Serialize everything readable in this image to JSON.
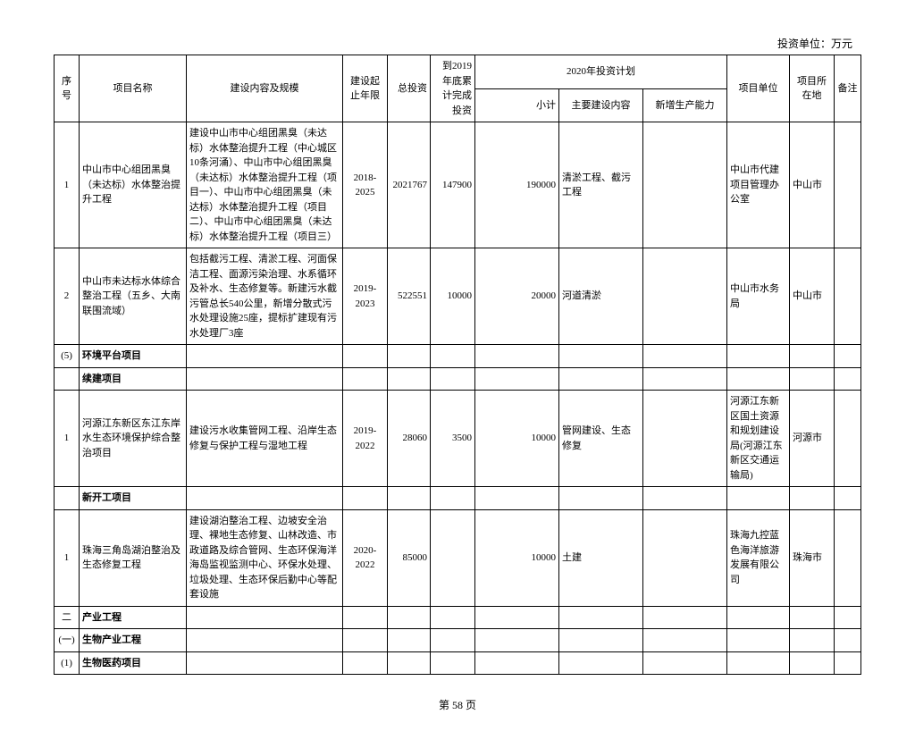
{
  "unit_label": "投资单位：万元",
  "headers": {
    "seq": "序号",
    "name": "项目名称",
    "content": "建设内容及规模",
    "period": "建设起止年限",
    "total": "总投资",
    "completed": "到2019年底累计完成投资",
    "plan2020": "2020年投资计划",
    "subtotal": "小计",
    "main_content": "主要建设内容",
    "new_capacity": "新增生产能力",
    "unit": "项目单位",
    "location": "项目所在地",
    "remark": "备注"
  },
  "rows": [
    {
      "seq": "1",
      "name": "中山市中心组团黑臭（未达标）水体整治提升工程",
      "content": "建设中山市中心组团黑臭（未达标）水体整治提升工程（中心城区10条河涌）、中山市中心组团黑臭（未达标）水体整治提升工程（项目一）、中山市中心组团黑臭（未达标）水体整治提升工程（项目二）、中山市中心组团黑臭（未达标）水体整治提升工程（项目三）",
      "period": "2018-2025",
      "total": "2021767",
      "completed": "147900",
      "subtotal": "190000",
      "main_content": "清淤工程、截污工程",
      "new_capacity": "",
      "unit": "中山市代建项目管理办公室",
      "location": "中山市",
      "remark": ""
    },
    {
      "seq": "2",
      "name": "中山市未达标水体综合整治工程（五乡、大南联围流域）",
      "content": "包括截污工程、清淤工程、河面保洁工程、面源污染治理、水系循环及补水、生态修复等。新建污水截污管总长540公里，新增分散式污水处理设施25座，提标扩建现有污水处理厂3座",
      "period": "2019-2023",
      "total": "522551",
      "completed": "10000",
      "subtotal": "20000",
      "main_content": "河道清淤",
      "new_capacity": "",
      "unit": "中山市水务局",
      "location": "中山市",
      "remark": ""
    },
    {
      "section": true,
      "seq": "(5)",
      "name": "环境平台项目",
      "bold": true
    },
    {
      "section": true,
      "seq": "",
      "name": "续建项目",
      "bold": true
    },
    {
      "seq": "1",
      "name": "河源江东新区东江东岸水生态环境保护综合整治项目",
      "content": "建设污水收集管网工程、沿岸生态修复与保护工程与湿地工程",
      "period": "2019-2022",
      "total": "28060",
      "completed": "3500",
      "subtotal": "10000",
      "main_content": "管网建设、生态修复",
      "new_capacity": "",
      "unit": "河源江东新区国土资源和规划建设局(河源江东新区交通运输局)",
      "location": "河源市",
      "remark": ""
    },
    {
      "section": true,
      "seq": "",
      "name": "新开工项目",
      "bold": true
    },
    {
      "seq": "1",
      "name": "珠海三角岛湖泊整治及生态修复工程",
      "content": "建设湖泊整治工程、边坡安全治理、裸地生态修复、山林改造、市政道路及综合管网、生态环保海洋海岛监视监测中心、环保水处理、垃圾处理、生态环保后勤中心等配套设施",
      "period": "2020-2022",
      "total": "85000",
      "completed": "",
      "subtotal": "10000",
      "main_content": "土建",
      "new_capacity": "",
      "unit": "珠海九控蓝色海洋旅游发展有限公司",
      "location": "珠海市",
      "remark": ""
    },
    {
      "section": true,
      "seq": "二",
      "name": "产业工程",
      "bold": true
    },
    {
      "section": true,
      "seq": "(一)",
      "name": "生物产业工程",
      "bold": true
    },
    {
      "section": true,
      "seq": "(1)",
      "name": "生物医药项目",
      "bold": true
    }
  ],
  "footer": "第 58 页"
}
